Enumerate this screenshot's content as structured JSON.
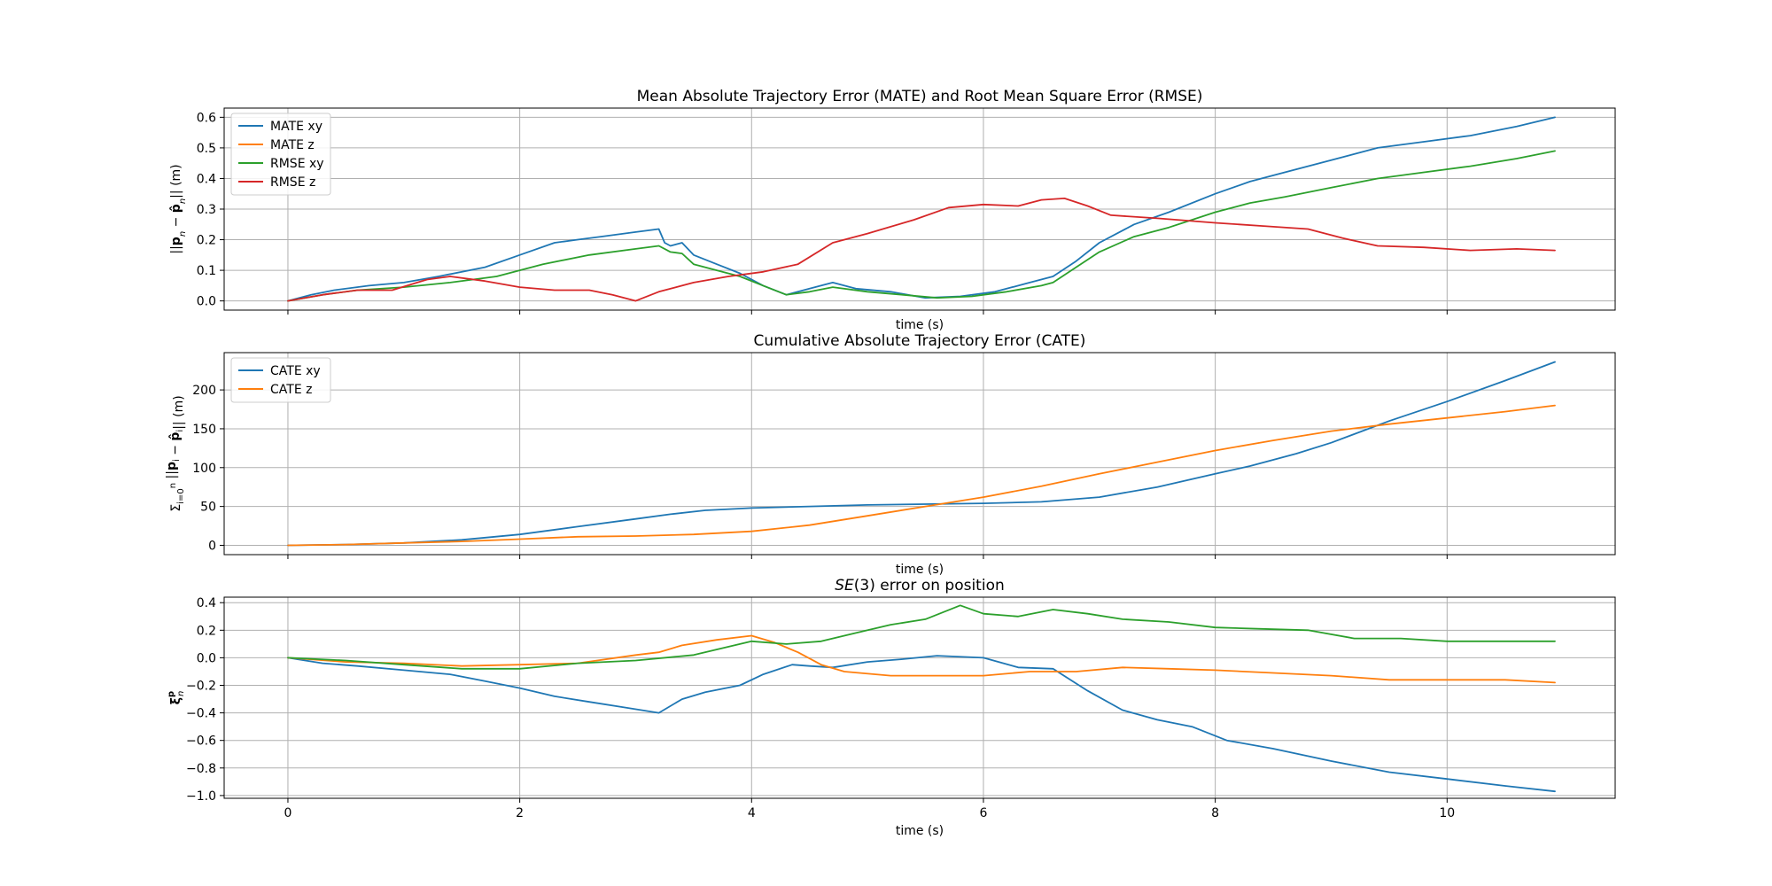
{
  "chart_data": [
    {
      "type": "line",
      "title": "Mean Absolute Trajectory Error (MATE) and Root Mean Square Error (RMSE)",
      "xlabel": "time (s)",
      "ylabel": "||p_n − p̂_n|| (m)",
      "xlim": [
        -0.55,
        11.45
      ],
      "ylim": [
        -0.03,
        0.63
      ],
      "xticks": [
        0,
        2,
        4,
        6,
        8,
        10
      ],
      "xtick_labels": [
        "0",
        "2",
        "4",
        "6",
        "8",
        "10"
      ],
      "yticks": [
        0.0,
        0.1,
        0.2,
        0.3,
        0.4,
        0.5,
        0.6
      ],
      "ytick_labels": [
        "0.0",
        "0.1",
        "0.2",
        "0.3",
        "0.4",
        "0.5",
        "0.6"
      ],
      "show_xtick_labels": false,
      "grid": true,
      "legend": "upper-left",
      "series": [
        {
          "name": "MATE xy",
          "color": "#1f77b4",
          "x": [
            0,
            0.2,
            0.4,
            0.7,
            1.0,
            1.3,
            1.7,
            2.0,
            2.3,
            2.5,
            2.7,
            3.0,
            3.2,
            3.25,
            3.3,
            3.4,
            3.5,
            3.7,
            3.9,
            4.1,
            4.3,
            4.5,
            4.7,
            4.9,
            5.2,
            5.5,
            5.8,
            6.1,
            6.4,
            6.6,
            6.8,
            7.0,
            7.3,
            7.6,
            8.0,
            8.3,
            8.6,
            9.0,
            9.4,
            9.8,
            10.2,
            10.6,
            10.93
          ],
          "y": [
            0,
            0.02,
            0.035,
            0.05,
            0.06,
            0.08,
            0.11,
            0.15,
            0.19,
            0.2,
            0.21,
            0.225,
            0.235,
            0.19,
            0.18,
            0.19,
            0.15,
            0.12,
            0.09,
            0.05,
            0.02,
            0.04,
            0.06,
            0.04,
            0.03,
            0.01,
            0.015,
            0.03,
            0.06,
            0.08,
            0.13,
            0.19,
            0.25,
            0.29,
            0.35,
            0.39,
            0.42,
            0.46,
            0.5,
            0.52,
            0.54,
            0.57,
            0.6
          ]
        },
        {
          "name": "MATE z",
          "color": "#ff7f0e",
          "x": [],
          "y": []
        },
        {
          "name": "RMSE xy",
          "color": "#2ca02c",
          "x": [
            0,
            0.3,
            0.6,
            1.0,
            1.4,
            1.8,
            2.2,
            2.6,
            3.0,
            3.2,
            3.25,
            3.3,
            3.4,
            3.5,
            3.7,
            3.9,
            4.1,
            4.3,
            4.5,
            4.7,
            5.0,
            5.3,
            5.6,
            5.9,
            6.2,
            6.5,
            6.6,
            6.8,
            7.0,
            7.3,
            7.6,
            8.0,
            8.3,
            8.6,
            9.0,
            9.4,
            9.8,
            10.2,
            10.6,
            10.93
          ],
          "y": [
            0,
            0.02,
            0.035,
            0.045,
            0.06,
            0.08,
            0.12,
            0.15,
            0.17,
            0.18,
            0.17,
            0.16,
            0.155,
            0.12,
            0.1,
            0.08,
            0.05,
            0.02,
            0.03,
            0.045,
            0.03,
            0.02,
            0.01,
            0.015,
            0.03,
            0.05,
            0.06,
            0.11,
            0.16,
            0.21,
            0.24,
            0.29,
            0.32,
            0.34,
            0.37,
            0.4,
            0.42,
            0.44,
            0.465,
            0.49
          ]
        },
        {
          "name": "RMSE z",
          "color": "#d62728",
          "x": [
            0,
            0.3,
            0.6,
            0.9,
            1.2,
            1.4,
            1.7,
            2.0,
            2.3,
            2.6,
            2.8,
            3.0,
            3.2,
            3.5,
            3.8,
            4.1,
            4.4,
            4.7,
            5.0,
            5.4,
            5.7,
            6.0,
            6.3,
            6.5,
            6.7,
            6.9,
            7.1,
            7.5,
            8.0,
            8.4,
            8.8,
            9.1,
            9.4,
            9.8,
            10.2,
            10.6,
            10.93
          ],
          "y": [
            0,
            0.02,
            0.035,
            0.035,
            0.07,
            0.08,
            0.065,
            0.045,
            0.035,
            0.035,
            0.02,
            0.0,
            0.03,
            0.06,
            0.08,
            0.095,
            0.12,
            0.19,
            0.22,
            0.265,
            0.305,
            0.315,
            0.31,
            0.33,
            0.335,
            0.31,
            0.28,
            0.27,
            0.255,
            0.245,
            0.235,
            0.205,
            0.18,
            0.175,
            0.165,
            0.17,
            0.165
          ]
        }
      ]
    },
    {
      "type": "line",
      "title": "Cumulative Absolute Trajectory Error (CATE)",
      "xlabel": "time (s)",
      "ylabel": "Σ_{i=0}^{n} ||p_i − p̂_i|| (m)",
      "xlim": [
        -0.55,
        11.45
      ],
      "ylim": [
        -12,
        248
      ],
      "xticks": [
        0,
        2,
        4,
        6,
        8,
        10
      ],
      "xtick_labels": [
        "0",
        "2",
        "4",
        "6",
        "8",
        "10"
      ],
      "yticks": [
        0,
        50,
        100,
        150,
        200
      ],
      "ytick_labels": [
        "0",
        "50",
        "100",
        "150",
        "200"
      ],
      "show_xtick_labels": false,
      "grid": true,
      "legend": "upper-left",
      "series": [
        {
          "name": "CATE xy",
          "color": "#1f77b4",
          "x": [
            0,
            0.5,
            1.0,
            1.5,
            2.0,
            2.5,
            3.0,
            3.3,
            3.6,
            4.0,
            4.5,
            5.0,
            5.5,
            6.0,
            6.5,
            7.0,
            7.5,
            8.0,
            8.3,
            8.7,
            9.0,
            9.5,
            10.0,
            10.5,
            10.93
          ],
          "y": [
            0,
            1,
            3,
            7,
            14,
            24,
            34,
            40,
            45,
            48,
            50,
            52,
            53,
            54,
            56,
            62,
            75,
            92,
            102,
            118,
            132,
            160,
            185,
            212,
            236
          ]
        },
        {
          "name": "CATE z",
          "color": "#ff7f0e",
          "x": [
            0,
            0.5,
            1.0,
            1.5,
            2.0,
            2.5,
            3.0,
            3.5,
            4.0,
            4.5,
            5.0,
            5.5,
            6.0,
            6.5,
            7.0,
            7.5,
            8.0,
            8.5,
            9.0,
            9.5,
            10.0,
            10.5,
            10.93
          ],
          "y": [
            0,
            1,
            3,
            5,
            8,
            11,
            12,
            14,
            18,
            26,
            38,
            50,
            62,
            76,
            92,
            107,
            122,
            135,
            147,
            156,
            164,
            172,
            180
          ]
        }
      ]
    },
    {
      "type": "line",
      "title": "SE(3) error on position",
      "xlabel": "time (s)",
      "ylabel": "ξ_n^p",
      "xlim": [
        -0.55,
        11.45
      ],
      "ylim": [
        -1.02,
        0.44
      ],
      "xticks": [
        0,
        2,
        4,
        6,
        8,
        10
      ],
      "xtick_labels": [
        "0",
        "2",
        "4",
        "6",
        "8",
        "10"
      ],
      "yticks": [
        -1.0,
        -0.8,
        -0.6,
        -0.4,
        -0.2,
        0.0,
        0.2,
        0.4
      ],
      "ytick_labels": [
        "−1.0",
        "−0.8",
        "−0.6",
        "−0.4",
        "−0.2",
        "0.0",
        "0.2",
        "0.4"
      ],
      "show_xtick_labels": true,
      "grid": true,
      "legend": "none",
      "series": [
        {
          "name": "",
          "color": "#1f77b4",
          "x": [
            0,
            0.3,
            0.6,
            1.0,
            1.4,
            1.7,
            2.0,
            2.3,
            2.6,
            2.9,
            3.2,
            3.4,
            3.6,
            3.9,
            4.1,
            4.35,
            4.5,
            4.7,
            5.0,
            5.3,
            5.6,
            6.0,
            6.3,
            6.6,
            6.9,
            7.2,
            7.5,
            7.8,
            8.1,
            8.5,
            9.0,
            9.5,
            10.0,
            10.5,
            10.93
          ],
          "y": [
            0,
            -0.04,
            -0.06,
            -0.09,
            -0.12,
            -0.17,
            -0.22,
            -0.28,
            -0.32,
            -0.36,
            -0.4,
            -0.3,
            -0.25,
            -0.2,
            -0.12,
            -0.05,
            -0.06,
            -0.07,
            -0.03,
            -0.01,
            0.015,
            0.0,
            -0.07,
            -0.08,
            -0.24,
            -0.38,
            -0.45,
            -0.5,
            -0.6,
            -0.66,
            -0.75,
            -0.83,
            -0.88,
            -0.93,
            -0.97
          ]
        },
        {
          "name": "",
          "color": "#ff7f0e",
          "x": [
            0,
            0.5,
            1.0,
            1.5,
            2.0,
            2.5,
            3.0,
            3.2,
            3.4,
            3.7,
            4.0,
            4.2,
            4.4,
            4.6,
            4.8,
            5.2,
            5.6,
            6.0,
            6.4,
            6.8,
            7.2,
            7.6,
            8.0,
            8.5,
            9.0,
            9.5,
            10.0,
            10.5,
            10.93
          ],
          "y": [
            0,
            -0.03,
            -0.04,
            -0.06,
            -0.05,
            -0.04,
            0.02,
            0.04,
            0.09,
            0.13,
            0.16,
            0.11,
            0.04,
            -0.05,
            -0.1,
            -0.13,
            -0.13,
            -0.13,
            -0.1,
            -0.1,
            -0.07,
            -0.08,
            -0.09,
            -0.11,
            -0.13,
            -0.16,
            -0.16,
            -0.16,
            -0.18
          ]
        },
        {
          "name": "",
          "color": "#2ca02c",
          "x": [
            0,
            0.5,
            1.0,
            1.5,
            2.0,
            2.5,
            3.0,
            3.5,
            4.0,
            4.3,
            4.6,
            4.9,
            5.2,
            5.5,
            5.8,
            6.0,
            6.3,
            6.6,
            6.9,
            7.2,
            7.6,
            8.0,
            8.4,
            8.8,
            9.2,
            9.6,
            10.0,
            10.5,
            10.93
          ],
          "y": [
            0,
            -0.02,
            -0.05,
            -0.08,
            -0.08,
            -0.04,
            -0.02,
            0.02,
            0.12,
            0.1,
            0.12,
            0.18,
            0.24,
            0.28,
            0.38,
            0.32,
            0.3,
            0.35,
            0.32,
            0.28,
            0.26,
            0.22,
            0.21,
            0.2,
            0.14,
            0.14,
            0.12,
            0.12,
            0.12
          ]
        }
      ]
    }
  ]
}
